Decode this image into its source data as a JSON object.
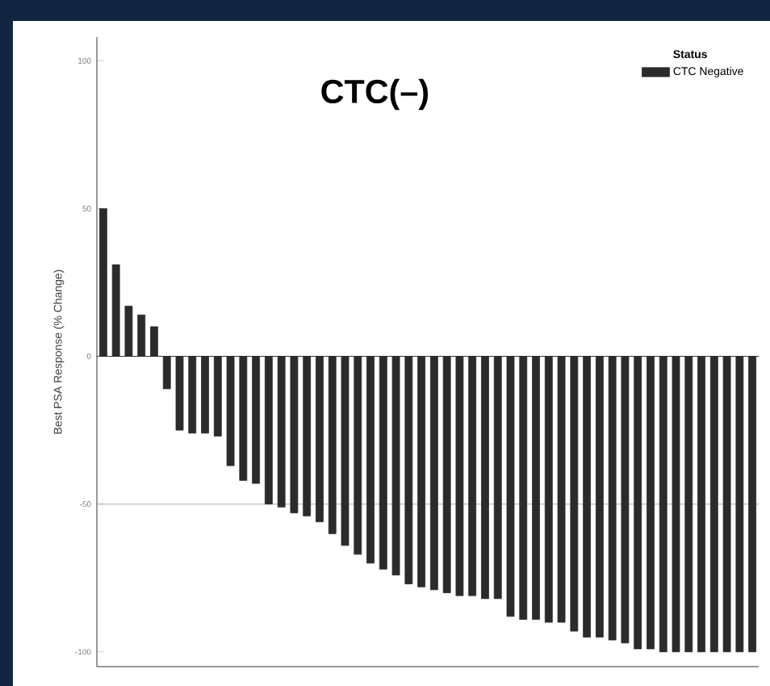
{
  "chart_data": {
    "type": "bar",
    "title": "CTC(–)",
    "ylabel": "Best PSA Response (% Change)",
    "legend_title": "Status",
    "categories": [
      null,
      null,
      null,
      null,
      null,
      null,
      null,
      null,
      null,
      null,
      null,
      null,
      null,
      null,
      null,
      null,
      null,
      null,
      null,
      null,
      null,
      null,
      null,
      null,
      null,
      null,
      null,
      null,
      null,
      null,
      null,
      null,
      null,
      null,
      null,
      null,
      null,
      null,
      null,
      null,
      null,
      null,
      null,
      null,
      null,
      null,
      null,
      null,
      null,
      null,
      null,
      null
    ],
    "series": [
      {
        "name": "CTC Negative",
        "color": "#2b2b2b",
        "values": [
          50,
          31,
          17,
          14,
          10,
          -11,
          -25,
          -26,
          -26,
          -27,
          -37,
          -42,
          -43,
          -50,
          -51,
          -53,
          -54,
          -56,
          -60,
          -64,
          -67,
          -70,
          -72,
          -74,
          -77,
          -78,
          -79,
          -80,
          -81,
          -81,
          -82,
          -82,
          -88,
          -89,
          -89,
          -90,
          -90,
          -93,
          -95,
          -95,
          -96,
          -97,
          -99,
          -99,
          -100,
          -100,
          -100,
          -100,
          -100,
          -100,
          -100,
          -100
        ]
      }
    ],
    "ylim": [
      -105,
      108
    ],
    "yticks": [
      -100,
      -50,
      0,
      50,
      100
    ],
    "ref_lines": [
      {
        "axis": "y",
        "value": -50,
        "color": "#9a9a9a"
      }
    ],
    "legend": "top right"
  }
}
